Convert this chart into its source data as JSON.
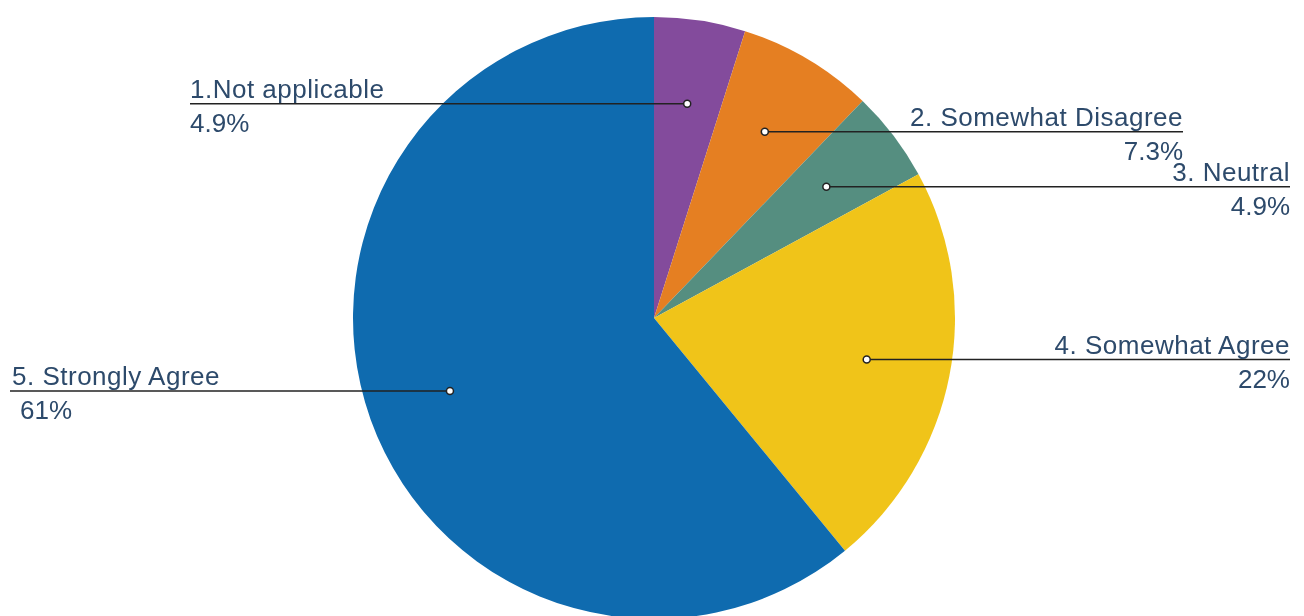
{
  "chart_data": {
    "type": "pie",
    "categories": [
      "1.Not applicable",
      "2. Somewhat Disagree",
      "3. Neutral",
      "4. Somewhat Agree",
      "5. Strongly Agree"
    ],
    "values": [
      4.9,
      7.3,
      4.9,
      22,
      61
    ],
    "colors": [
      "#834b9c",
      "#e57f22",
      "#558e80",
      "#f0c419",
      "#0f6baf"
    ],
    "value_labels": [
      "4.9%",
      "7.3%",
      "4.9%",
      "22%",
      "61%"
    ]
  }
}
